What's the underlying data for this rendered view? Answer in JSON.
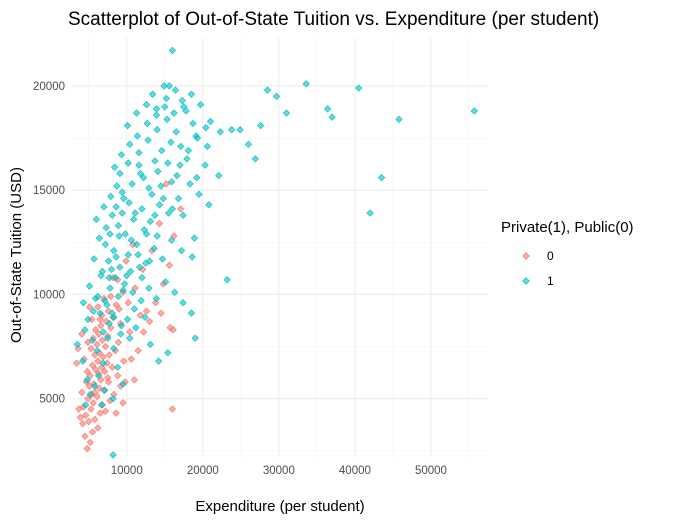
{
  "chart_data": {
    "type": "scatter",
    "title": "Scatterplot of Out-of-State Tuition vs. Expenditure (per student)",
    "xlabel": "Expenditure (per student)",
    "ylabel": "Out-of-State Tuition (USD)",
    "xlim": [
      2800,
      57500
    ],
    "ylim": [
      2200,
      22300
    ],
    "x_ticks": [
      10000,
      20000,
      30000,
      40000,
      50000
    ],
    "x_tick_labels": [
      "10000",
      "20000",
      "30000",
      "40000",
      "50000"
    ],
    "y_ticks": [
      5000,
      10000,
      15000,
      20000
    ],
    "y_tick_labels": [
      "5000",
      "10000",
      "15000",
      "20000"
    ],
    "grid": true,
    "legend": {
      "title": "Private(1), Public(0)",
      "placement": "right"
    },
    "marker": "diamond",
    "series": [
      {
        "name": "0",
        "color": "#F8766D",
        "points": [
          [
            4800,
            2600
          ],
          [
            5200,
            2900
          ],
          [
            4500,
            3200
          ],
          [
            5500,
            3400
          ],
          [
            6200,
            3600
          ],
          [
            4200,
            3800
          ],
          [
            5000,
            3900
          ],
          [
            5800,
            4000
          ],
          [
            3900,
            4100
          ],
          [
            4600,
            4200
          ],
          [
            6500,
            4300
          ],
          [
            7200,
            4400
          ],
          [
            5300,
            4500
          ],
          [
            3700,
            4500
          ],
          [
            4300,
            4600
          ],
          [
            6800,
            4700
          ],
          [
            5600,
            4800
          ],
          [
            16000,
            4500
          ],
          [
            7800,
            4900
          ],
          [
            4900,
            5000
          ],
          [
            6100,
            5100
          ],
          [
            5400,
            5200
          ],
          [
            8300,
            5200
          ],
          [
            4100,
            5300
          ],
          [
            7000,
            5400
          ],
          [
            6400,
            5500
          ],
          [
            5100,
            5600
          ],
          [
            9200,
            5600
          ],
          [
            5700,
            5700
          ],
          [
            4700,
            5800
          ],
          [
            6600,
            5900
          ],
          [
            7500,
            6000
          ],
          [
            5200,
            6100
          ],
          [
            8800,
            6100
          ],
          [
            6300,
            6200
          ],
          [
            4800,
            6300
          ],
          [
            7100,
            6300
          ],
          [
            5900,
            6400
          ],
          [
            6700,
            6500
          ],
          [
            8100,
            6500
          ],
          [
            5500,
            6600
          ],
          [
            7400,
            6700
          ],
          [
            6200,
            6800
          ],
          [
            9600,
            6800
          ],
          [
            4400,
            6900
          ],
          [
            6900,
            7000
          ],
          [
            5800,
            7100
          ],
          [
            7700,
            7100
          ],
          [
            6400,
            7200
          ],
          [
            8500,
            7300
          ],
          [
            5300,
            7400
          ],
          [
            7200,
            7500
          ],
          [
            6100,
            7600
          ],
          [
            4900,
            7700
          ],
          [
            8900,
            7700
          ],
          [
            6800,
            7800
          ],
          [
            5600,
            7900
          ],
          [
            7500,
            8000
          ],
          [
            6300,
            8100
          ],
          [
            10400,
            8200
          ],
          [
            5900,
            8300
          ],
          [
            7900,
            8400
          ],
          [
            6600,
            8500
          ],
          [
            9200,
            8600
          ],
          [
            7300,
            8700
          ],
          [
            5400,
            8800
          ],
          [
            8200,
            8900
          ],
          [
            6700,
            9000
          ],
          [
            11800,
            9000
          ],
          [
            7600,
            9200
          ],
          [
            9000,
            9300
          ],
          [
            6200,
            9400
          ],
          [
            8600,
            9500
          ],
          [
            12600,
            9200
          ],
          [
            10200,
            9600
          ],
          [
            7000,
            9800
          ],
          [
            13800,
            9600
          ],
          [
            9500,
            10100
          ],
          [
            11100,
            10300
          ],
          [
            14800,
            10500
          ],
          [
            8200,
            10800
          ],
          [
            12100,
            11200
          ],
          [
            15600,
            11400
          ],
          [
            13300,
            12100
          ],
          [
            10800,
            12400
          ],
          [
            16200,
            12800
          ],
          [
            14300,
            13400
          ],
          [
            17100,
            14100
          ],
          [
            15200,
            15300
          ],
          [
            3600,
            7400
          ],
          [
            4100,
            8100
          ],
          [
            3400,
            6700
          ],
          [
            5100,
            9400
          ],
          [
            9800,
            5800
          ],
          [
            10600,
            6900
          ],
          [
            11500,
            7300
          ],
          [
            12200,
            8200
          ],
          [
            13000,
            8700
          ],
          [
            14500,
            9100
          ],
          [
            15700,
            8400
          ],
          [
            16100,
            8300
          ],
          [
            11000,
            5900
          ],
          [
            9500,
            4800
          ],
          [
            8600,
            4300
          ],
          [
            7600,
            5800
          ],
          [
            5800,
            5300
          ],
          [
            6500,
            8800
          ],
          [
            7900,
            9900
          ],
          [
            8800,
            10700
          ],
          [
            9900,
            11600
          ]
        ]
      },
      {
        "name": "1",
        "color": "#00BFC4",
        "points": [
          [
            3500,
            7600
          ],
          [
            4200,
            6800
          ],
          [
            4800,
            5900
          ],
          [
            5200,
            5200
          ],
          [
            4600,
            4700
          ],
          [
            5800,
            5600
          ],
          [
            6300,
            6100
          ],
          [
            7100,
            5400
          ],
          [
            6700,
            4700
          ],
          [
            8200,
            5000
          ],
          [
            9500,
            5700
          ],
          [
            8800,
            6500
          ],
          [
            5500,
            7800
          ],
          [
            6900,
            8200
          ],
          [
            4900,
            8800
          ],
          [
            5600,
            9200
          ],
          [
            4300,
            9600
          ],
          [
            6200,
            9900
          ],
          [
            7400,
            9500
          ],
          [
            8100,
            9100
          ],
          [
            9300,
            8500
          ],
          [
            10400,
            7900
          ],
          [
            11200,
            8400
          ],
          [
            12400,
            8900
          ],
          [
            13100,
            7600
          ],
          [
            14200,
            6800
          ],
          [
            15400,
            7200
          ],
          [
            7800,
            10300
          ],
          [
            8500,
            10800
          ],
          [
            9700,
            10500
          ],
          [
            10800,
            10100
          ],
          [
            11900,
            9700
          ],
          [
            12900,
            10300
          ],
          [
            13900,
            9800
          ],
          [
            15100,
            10600
          ],
          [
            16300,
            10100
          ],
          [
            17400,
            9600
          ],
          [
            18500,
            9100
          ],
          [
            6800,
            11100
          ],
          [
            7600,
            11600
          ],
          [
            8300,
            12100
          ],
          [
            9100,
            11300
          ],
          [
            10200,
            11900
          ],
          [
            11300,
            12400
          ],
          [
            12500,
            11500
          ],
          [
            13600,
            12200
          ],
          [
            14700,
            11700
          ],
          [
            15900,
            12600
          ],
          [
            17200,
            12100
          ],
          [
            18600,
            11800
          ],
          [
            6400,
            12700
          ],
          [
            7300,
            13200
          ],
          [
            8100,
            13800
          ],
          [
            8900,
            13300
          ],
          [
            9800,
            12900
          ],
          [
            10900,
            13600
          ],
          [
            12000,
            14100
          ],
          [
            13100,
            13500
          ],
          [
            14300,
            14300
          ],
          [
            15500,
            13900
          ],
          [
            16800,
            14600
          ],
          [
            7000,
            14200
          ],
          [
            7900,
            14700
          ],
          [
            8700,
            15200
          ],
          [
            9600,
            14600
          ],
          [
            10700,
            15300
          ],
          [
            11800,
            15800
          ],
          [
            12900,
            15100
          ],
          [
            14100,
            15900
          ],
          [
            15400,
            16300
          ],
          [
            16600,
            15700
          ],
          [
            17900,
            16500
          ],
          [
            19200,
            15600
          ],
          [
            8400,
            16100
          ],
          [
            9300,
            16700
          ],
          [
            10400,
            17200
          ],
          [
            11600,
            16800
          ],
          [
            12800,
            17400
          ],
          [
            14000,
            17900
          ],
          [
            15300,
            18400
          ],
          [
            16500,
            17800
          ],
          [
            17800,
            18800
          ],
          [
            19100,
            17600
          ],
          [
            20600,
            17100
          ],
          [
            10100,
            18100
          ],
          [
            11300,
            18700
          ],
          [
            12600,
            19100
          ],
          [
            13900,
            18600
          ],
          [
            15200,
            19400
          ],
          [
            16400,
            19800
          ],
          [
            14900,
            20000
          ],
          [
            15600,
            20000
          ],
          [
            17300,
            19300
          ],
          [
            18500,
            19600
          ],
          [
            19700,
            19100
          ],
          [
            21000,
            18300
          ],
          [
            22300,
            17800
          ],
          [
            23800,
            17900
          ],
          [
            24900,
            17900
          ],
          [
            26000,
            17200
          ],
          [
            27600,
            18100
          ],
          [
            28500,
            19800
          ],
          [
            29700,
            19500
          ],
          [
            31000,
            18700
          ],
          [
            33600,
            20100
          ],
          [
            36400,
            18900
          ],
          [
            37000,
            18500
          ],
          [
            40500,
            19900
          ],
          [
            43500,
            15600
          ],
          [
            45800,
            18400
          ],
          [
            42000,
            13900
          ],
          [
            55700,
            18800
          ],
          [
            16000,
            21700
          ],
          [
            26900,
            16500
          ],
          [
            23200,
            10700
          ],
          [
            19000,
            7900
          ],
          [
            8200,
            2300
          ],
          [
            22100,
            15700
          ],
          [
            20300,
            16200
          ],
          [
            13400,
            19600
          ],
          [
            5900,
            9800
          ],
          [
            6600,
            10900
          ],
          [
            7200,
            12400
          ],
          [
            7700,
            10800
          ],
          [
            8000,
            11200
          ],
          [
            8600,
            11800
          ],
          [
            9000,
            12800
          ],
          [
            9400,
            13900
          ],
          [
            10000,
            10900
          ],
          [
            10600,
            12600
          ],
          [
            11100,
            13900
          ],
          [
            11700,
            11300
          ],
          [
            12300,
            13100
          ],
          [
            13700,
            16400
          ],
          [
            14600,
            16900
          ],
          [
            15800,
            17300
          ],
          [
            17100,
            17100
          ],
          [
            18300,
            15300
          ],
          [
            19500,
            14800
          ],
          [
            20800,
            14300
          ],
          [
            6100,
            7300
          ],
          [
            6900,
            6700
          ],
          [
            7500,
            7900
          ],
          [
            8300,
            7400
          ],
          [
            9200,
            8100
          ],
          [
            10100,
            8800
          ],
          [
            11000,
            9300
          ],
          [
            12000,
            10800
          ],
          [
            13000,
            11600
          ],
          [
            14000,
            12800
          ],
          [
            4500,
            8300
          ],
          [
            5100,
            10400
          ],
          [
            5700,
            11700
          ],
          [
            6000,
            13600
          ],
          [
            6500,
            9100
          ],
          [
            7100,
            9700
          ],
          [
            7700,
            8600
          ],
          [
            8300,
            8900
          ],
          [
            8900,
            9900
          ],
          [
            9500,
            10200
          ],
          [
            10500,
            11100
          ],
          [
            11500,
            11900
          ],
          [
            12600,
            12900
          ],
          [
            13700,
            13800
          ],
          [
            14800,
            14600
          ],
          [
            15900,
            15400
          ],
          [
            17000,
            16200
          ],
          [
            18100,
            16900
          ],
          [
            19300,
            17500
          ],
          [
            20400,
            18000
          ],
          [
            9100,
            15800
          ],
          [
            10200,
            16300
          ],
          [
            11400,
            17600
          ],
          [
            12700,
            18200
          ],
          [
            13900,
            18900
          ],
          [
            15000,
            19000
          ],
          [
            16200,
            18700
          ],
          [
            17500,
            19000
          ],
          [
            18700,
            18200
          ],
          [
            11600,
            16200
          ],
          [
            12200,
            15600
          ],
          [
            13300,
            14800
          ],
          [
            14500,
            15200
          ],
          [
            16000,
            14100
          ],
          [
            17400,
            13800
          ],
          [
            18900,
            12700
          ],
          [
            7800,
            12900
          ],
          [
            8600,
            14200
          ],
          [
            9400,
            14900
          ],
          [
            10300,
            14400
          ]
        ]
      }
    ]
  }
}
